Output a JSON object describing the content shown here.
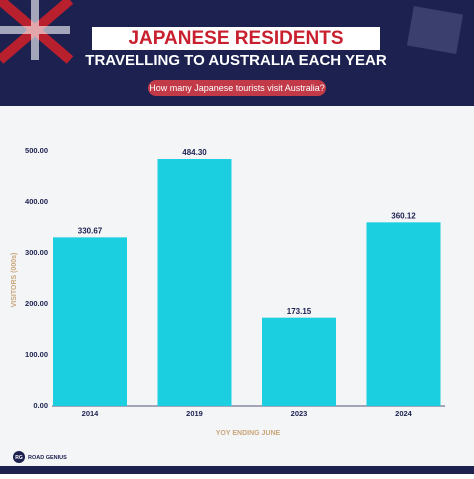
{
  "chart_data": {
    "type": "bar",
    "title": "JAPANESE RESIDENTS",
    "subtitle": "TRAVELLING TO AUSTRALIA EACH YEAR",
    "question": "How many Japanese tourists visit Australia?",
    "y_label": "VISITORS (000s)",
    "x_label": "YOY ENDING JUNE",
    "brand": "ROAD GENIUS",
    "brand_logo": "RG",
    "categories": [
      "2014",
      "2019",
      "2023",
      "2024"
    ],
    "values": [
      330.67,
      484.3,
      173.15,
      360.12
    ],
    "value_labels": [
      "330.67",
      "484.30",
      "173.15",
      "360.12"
    ],
    "color": "#1ccfe0",
    "ylim": [
      0,
      500
    ],
    "yticks": [
      {
        "value": 0,
        "label": "0.00"
      },
      {
        "value": 100,
        "label": "100.00"
      },
      {
        "value": 200,
        "label": "200.00"
      },
      {
        "value": 300,
        "label": "300.00"
      },
      {
        "value": 400,
        "label": "400.00"
      },
      {
        "value": 500,
        "label": "500.00"
      }
    ],
    "grid": false
  }
}
